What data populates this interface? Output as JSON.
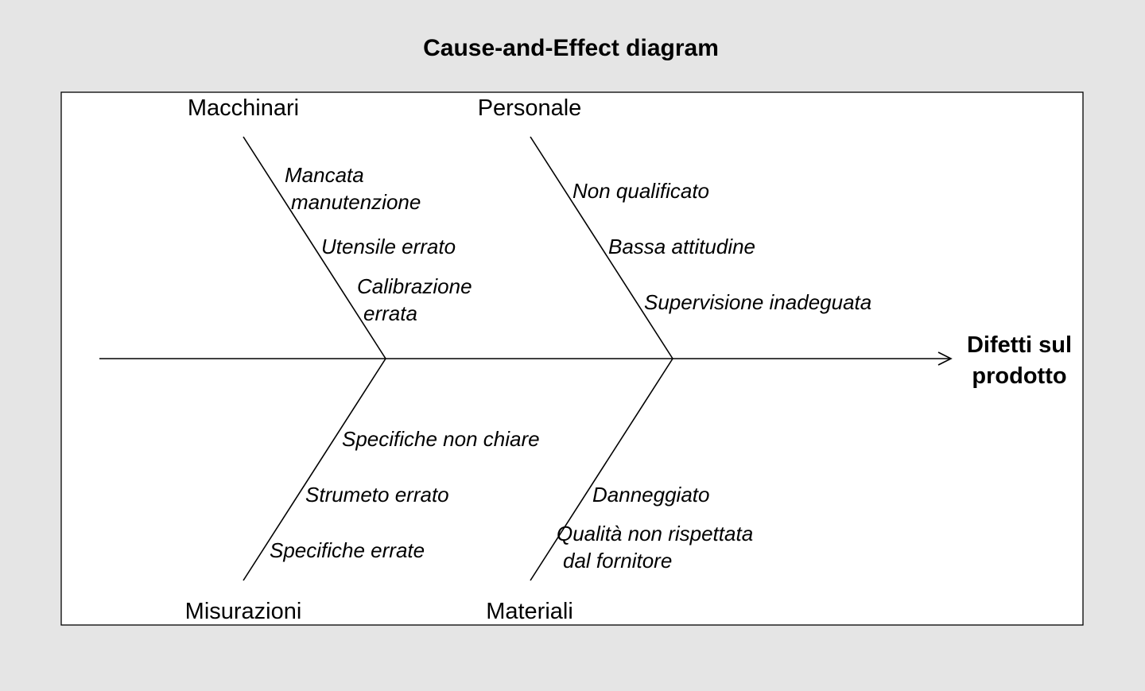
{
  "title": "Cause-and-Effect diagram",
  "effect": {
    "line1": "Difetti sul",
    "line2": "prodotto"
  },
  "branches": {
    "macchinari": {
      "label": "Macchinari",
      "causes": {
        "c1": {
          "line1": "Mancata",
          "line2": "manutenzione"
        },
        "c2": "Utensile errato",
        "c3": {
          "line1": "Calibrazione",
          "line2": "errata"
        }
      }
    },
    "personale": {
      "label": "Personale",
      "causes": {
        "c1": "Non qualificato",
        "c2": "Bassa attitudine",
        "c3": "Supervisione inadeguata"
      }
    },
    "misurazioni": {
      "label": "Misurazioni",
      "causes": {
        "c1": "Specifiche non chiare",
        "c2": "Strumeto errato",
        "c3": "Specifiche errate"
      }
    },
    "materiali": {
      "label": "Materiali",
      "causes": {
        "c1": "Danneggiato",
        "c2": {
          "line1": "Qualità non rispettata",
          "line2": "dal fornitore"
        }
      }
    }
  }
}
